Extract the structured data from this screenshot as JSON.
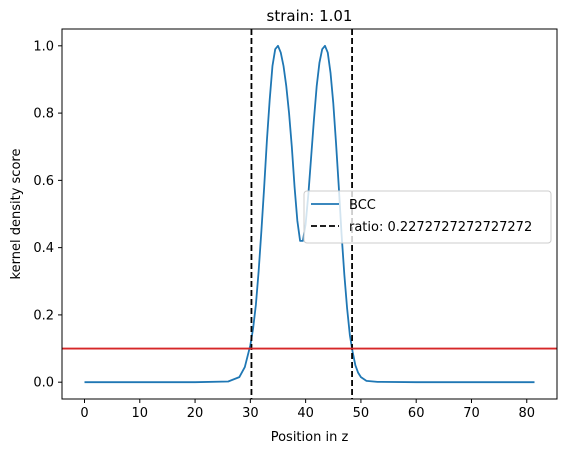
{
  "chart_data": {
    "type": "line",
    "title": "strain: 1.01",
    "xlabel": "Position in z",
    "ylabel": "kernel density score",
    "xlim": [
      -4.07,
      85.47
    ],
    "ylim": [
      -0.05,
      1.05
    ],
    "xticks": [
      0,
      10,
      20,
      30,
      40,
      50,
      60,
      70,
      80
    ],
    "yticks": [
      0.0,
      0.2,
      0.4,
      0.6,
      0.8,
      1.0
    ],
    "xtick_labels": [
      "0",
      "10",
      "20",
      "30",
      "40",
      "50",
      "60",
      "70",
      "80"
    ],
    "ytick_labels": [
      "0.0",
      "0.2",
      "0.4",
      "0.6",
      "0.8",
      "1.0"
    ],
    "grid": false,
    "legend_position": "center-right",
    "series": [
      {
        "name": "BCC",
        "color": "#1f77b4",
        "style": "solid",
        "x": [
          0,
          10,
          20,
          26,
          28,
          29,
          30,
          30.5,
          31,
          31.5,
          32,
          32.5,
          33,
          33.5,
          34,
          34.5,
          35,
          35.5,
          36,
          36.5,
          37,
          37.5,
          38,
          38.5,
          39,
          39.5,
          40,
          40.5,
          41,
          41.5,
          42,
          42.5,
          43,
          43.5,
          44,
          44.5,
          45,
          45.5,
          46,
          46.5,
          47,
          47.5,
          48,
          48.5,
          49,
          49.5,
          50,
          51,
          53,
          60,
          70,
          81.4
        ],
        "y": [
          0,
          0,
          0,
          0.002,
          0.015,
          0.045,
          0.11,
          0.16,
          0.23,
          0.33,
          0.45,
          0.58,
          0.72,
          0.84,
          0.94,
          0.99,
          1.0,
          0.98,
          0.94,
          0.88,
          0.8,
          0.7,
          0.58,
          0.48,
          0.42,
          0.42,
          0.47,
          0.56,
          0.67,
          0.78,
          0.88,
          0.95,
          0.99,
          1.0,
          0.98,
          0.92,
          0.83,
          0.71,
          0.58,
          0.44,
          0.32,
          0.22,
          0.14,
          0.09,
          0.05,
          0.028,
          0.015,
          0.004,
          0.001,
          0,
          0,
          0
        ]
      }
    ],
    "vlines": [
      {
        "name": "ratio: 0.2272727272727272",
        "x": [
          30.2,
          48.4
        ],
        "color": "#000000",
        "style": "dashed"
      }
    ],
    "hline": {
      "y": 0.1,
      "color": "#d62728"
    }
  }
}
